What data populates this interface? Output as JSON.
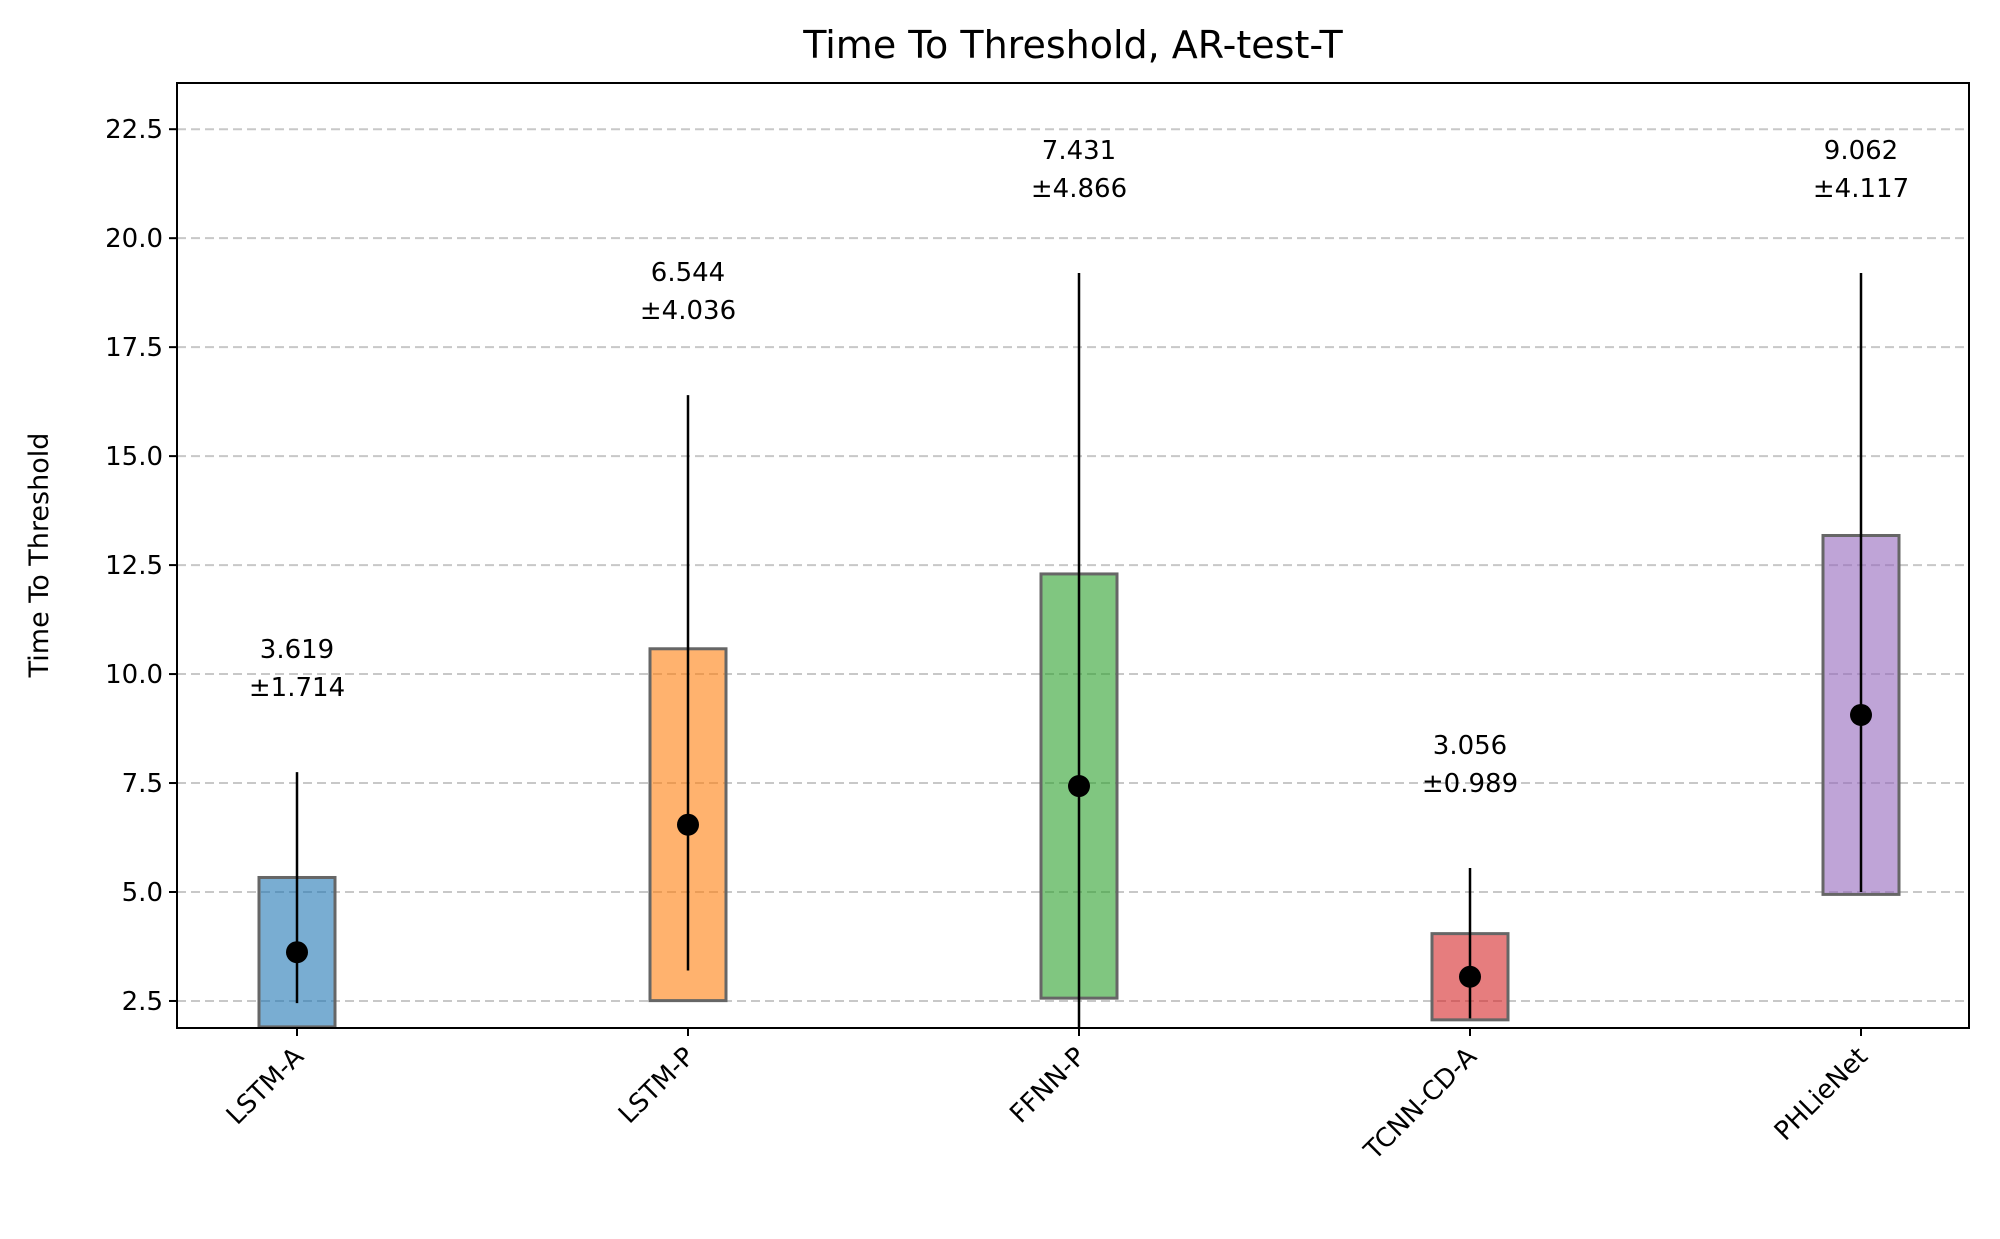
{
  "chart_data": {
    "type": "range-bar",
    "title": "Time To Threshold, AR-test-T",
    "y_label": "Time To Threshold",
    "categories": [
      "LSTM-A",
      "LSTM-P",
      "FFNN-P",
      "TCNN-CD-A",
      "PHLieNet"
    ],
    "values": [
      3.619,
      6.544,
      7.431,
      3.056,
      9.062
    ],
    "errors": [
      1.714,
      4.036,
      4.866,
      0.989,
      4.117
    ],
    "error_labels": [
      "±1.714",
      "±4.036",
      "±4.866",
      "±0.989",
      "±4.117"
    ],
    "min": [
      2.45,
      3.2,
      1.5,
      2.1,
      5.0
    ],
    "max": [
      7.75,
      16.4,
      19.2,
      5.55,
      19.2
    ],
    "colors": [
      "#1f77b4",
      "#ff7f0e",
      "#2ca02c",
      "#d62728",
      "#9467bd"
    ],
    "ylim": [
      1.88,
      23.56
    ],
    "yticks": [
      {
        "value": 2.5,
        "label": "2.5"
      },
      {
        "value": 5,
        "label": "5.0"
      },
      {
        "value": 7.5,
        "label": "7.5"
      },
      {
        "value": 10,
        "label": "10.0"
      },
      {
        "value": 12.5,
        "label": "12.5"
      },
      {
        "value": 15,
        "label": "15.0"
      },
      {
        "value": 17.5,
        "label": "17.5"
      },
      {
        "value": 20,
        "label": "20.0"
      },
      {
        "value": 22.5,
        "label": "22.5"
      }
    ],
    "grid": true
  }
}
